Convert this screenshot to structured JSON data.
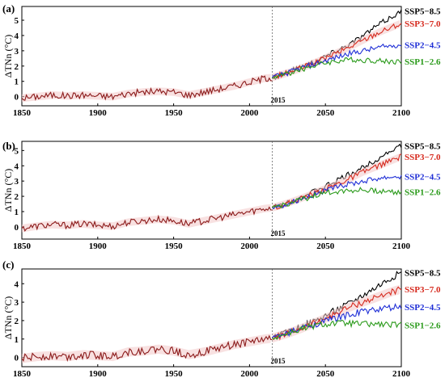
{
  "colors": {
    "historical": "#8b1a1a",
    "ssp585": "#000000",
    "ssp370": "#d62a1e",
    "ssp245": "#1f2fd6",
    "ssp126": "#2a9a1a",
    "band": "#f2c8c8",
    "axis": "#000000"
  },
  "chart_data": [
    {
      "type": "line",
      "panel_label": "(a)",
      "ylabel": "ΔTNn (°C)",
      "xlim": [
        1850,
        2100
      ],
      "ylim": [
        -0.6,
        5.9
      ],
      "xticks": [
        1850,
        1900,
        1950,
        2000,
        2050,
        2100
      ],
      "yticks": [
        0,
        1,
        2,
        3,
        4,
        5
      ],
      "annotation": "2015",
      "series": [
        {
          "name": "historical",
          "color_key": "historical",
          "x": [
            1850,
            1860,
            1870,
            1880,
            1890,
            1900,
            1910,
            1920,
            1930,
            1940,
            1950,
            1960,
            1970,
            1980,
            1990,
            2000,
            2010,
            2015
          ],
          "values": [
            -0.1,
            0.0,
            0.1,
            0.05,
            0.1,
            0.05,
            0.0,
            0.2,
            0.3,
            0.35,
            0.3,
            0.1,
            0.3,
            0.5,
            0.7,
            0.95,
            1.2,
            1.25
          ]
        },
        {
          "name": "SSP5−8.5",
          "color_key": "ssp585",
          "x": [
            2015,
            2025,
            2035,
            2045,
            2055,
            2065,
            2075,
            2085,
            2095,
            2100
          ],
          "values": [
            1.25,
            1.6,
            2.0,
            2.4,
            2.9,
            3.4,
            4.0,
            4.7,
            5.3,
            5.6
          ]
        },
        {
          "name": "SSP3−7.0",
          "color_key": "ssp370",
          "x": [
            2015,
            2025,
            2035,
            2045,
            2055,
            2065,
            2075,
            2085,
            2095,
            2100
          ],
          "values": [
            1.25,
            1.55,
            1.9,
            2.3,
            2.75,
            3.2,
            3.7,
            4.2,
            4.6,
            4.8
          ]
        },
        {
          "name": "SSP2−4.5",
          "color_key": "ssp245",
          "x": [
            2015,
            2025,
            2035,
            2045,
            2055,
            2065,
            2075,
            2085,
            2095,
            2100
          ],
          "values": [
            1.25,
            1.55,
            1.9,
            2.2,
            2.5,
            2.8,
            3.0,
            3.2,
            3.35,
            3.4
          ]
        },
        {
          "name": "SSP1−2.6",
          "color_key": "ssp126",
          "x": [
            2015,
            2025,
            2035,
            2045,
            2055,
            2065,
            2075,
            2085,
            2095,
            2100
          ],
          "values": [
            1.25,
            1.5,
            1.8,
            2.1,
            2.3,
            2.4,
            2.4,
            2.35,
            2.3,
            2.3
          ]
        }
      ]
    },
    {
      "type": "line",
      "panel_label": "(b)",
      "ylabel": "ΔTNn (°C)",
      "xlim": [
        1850,
        2100
      ],
      "ylim": [
        -0.8,
        5.6
      ],
      "xticks": [
        1850,
        1900,
        1950,
        2000,
        2050,
        2100
      ],
      "yticks": [
        0,
        1,
        2,
        3,
        4,
        5
      ],
      "annotation": "2015",
      "series": [
        {
          "name": "historical",
          "color_key": "historical",
          "x": [
            1850,
            1860,
            1870,
            1880,
            1890,
            1900,
            1910,
            1920,
            1930,
            1940,
            1950,
            1960,
            1970,
            1980,
            1990,
            2000,
            2010,
            2015
          ],
          "values": [
            -0.1,
            0.05,
            0.15,
            0.1,
            0.2,
            0.1,
            0.05,
            0.3,
            0.4,
            0.5,
            0.4,
            0.2,
            0.4,
            0.6,
            0.8,
            1.0,
            1.2,
            1.25
          ]
        },
        {
          "name": "SSP5−8.5",
          "color_key": "ssp585",
          "x": [
            2015,
            2025,
            2035,
            2045,
            2055,
            2065,
            2075,
            2085,
            2095,
            2100
          ],
          "values": [
            1.25,
            1.6,
            2.0,
            2.4,
            2.9,
            3.4,
            3.9,
            4.5,
            5.1,
            5.3
          ]
        },
        {
          "name": "SSP3−7.0",
          "color_key": "ssp370",
          "x": [
            2015,
            2025,
            2035,
            2045,
            2055,
            2065,
            2075,
            2085,
            2095,
            2100
          ],
          "values": [
            1.25,
            1.55,
            1.9,
            2.3,
            2.7,
            3.1,
            3.6,
            4.0,
            4.4,
            4.6
          ]
        },
        {
          "name": "SSP2−4.5",
          "color_key": "ssp245",
          "x": [
            2015,
            2025,
            2035,
            2045,
            2055,
            2065,
            2075,
            2085,
            2095,
            2100
          ],
          "values": [
            1.25,
            1.5,
            1.9,
            2.2,
            2.5,
            2.8,
            3.0,
            3.2,
            3.3,
            3.3
          ]
        },
        {
          "name": "SSP1−2.6",
          "color_key": "ssp126",
          "x": [
            2015,
            2025,
            2035,
            2045,
            2055,
            2065,
            2075,
            2085,
            2095,
            2100
          ],
          "values": [
            1.25,
            1.5,
            1.8,
            2.1,
            2.3,
            2.4,
            2.4,
            2.35,
            2.3,
            2.3
          ]
        }
      ]
    },
    {
      "type": "line",
      "panel_label": "(c)",
      "ylabel": "ΔTNn (°C)",
      "xlim": [
        1850,
        2100
      ],
      "ylim": [
        -0.5,
        4.8
      ],
      "xticks": [
        1850,
        1900,
        1950,
        2000,
        2050,
        2100
      ],
      "yticks": [
        0,
        1,
        2,
        3,
        4
      ],
      "annotation": "2015",
      "series": [
        {
          "name": "historical",
          "color_key": "historical",
          "x": [
            1850,
            1860,
            1870,
            1880,
            1890,
            1900,
            1910,
            1920,
            1930,
            1940,
            1950,
            1960,
            1970,
            1980,
            1990,
            2000,
            2010,
            2015
          ],
          "values": [
            -0.05,
            0.05,
            0.1,
            0.05,
            0.15,
            0.1,
            0.05,
            0.3,
            0.35,
            0.45,
            0.35,
            0.15,
            0.3,
            0.5,
            0.7,
            0.85,
            1.0,
            1.05
          ]
        },
        {
          "name": "SSP5−8.5",
          "color_key": "ssp585",
          "x": [
            2015,
            2025,
            2035,
            2045,
            2055,
            2065,
            2075,
            2085,
            2095,
            2100
          ],
          "values": [
            1.05,
            1.35,
            1.7,
            2.05,
            2.5,
            2.9,
            3.4,
            3.9,
            4.4,
            4.6
          ]
        },
        {
          "name": "SSP3−7.0",
          "color_key": "ssp370",
          "x": [
            2015,
            2025,
            2035,
            2045,
            2055,
            2065,
            2075,
            2085,
            2095,
            2100
          ],
          "values": [
            1.05,
            1.3,
            1.6,
            1.95,
            2.3,
            2.7,
            3.0,
            3.3,
            3.6,
            3.7
          ]
        },
        {
          "name": "SSP2−4.5",
          "color_key": "ssp245",
          "x": [
            2015,
            2025,
            2035,
            2045,
            2055,
            2065,
            2075,
            2085,
            2095,
            2100
          ],
          "values": [
            1.05,
            1.3,
            1.6,
            1.85,
            2.1,
            2.3,
            2.5,
            2.6,
            2.7,
            2.75
          ]
        },
        {
          "name": "SSP1−2.6",
          "color_key": "ssp126",
          "x": [
            2015,
            2025,
            2035,
            2045,
            2055,
            2065,
            2075,
            2085,
            2095,
            2100
          ],
          "values": [
            1.05,
            1.3,
            1.55,
            1.75,
            1.85,
            1.85,
            1.8,
            1.8,
            1.75,
            1.75
          ]
        }
      ]
    }
  ]
}
